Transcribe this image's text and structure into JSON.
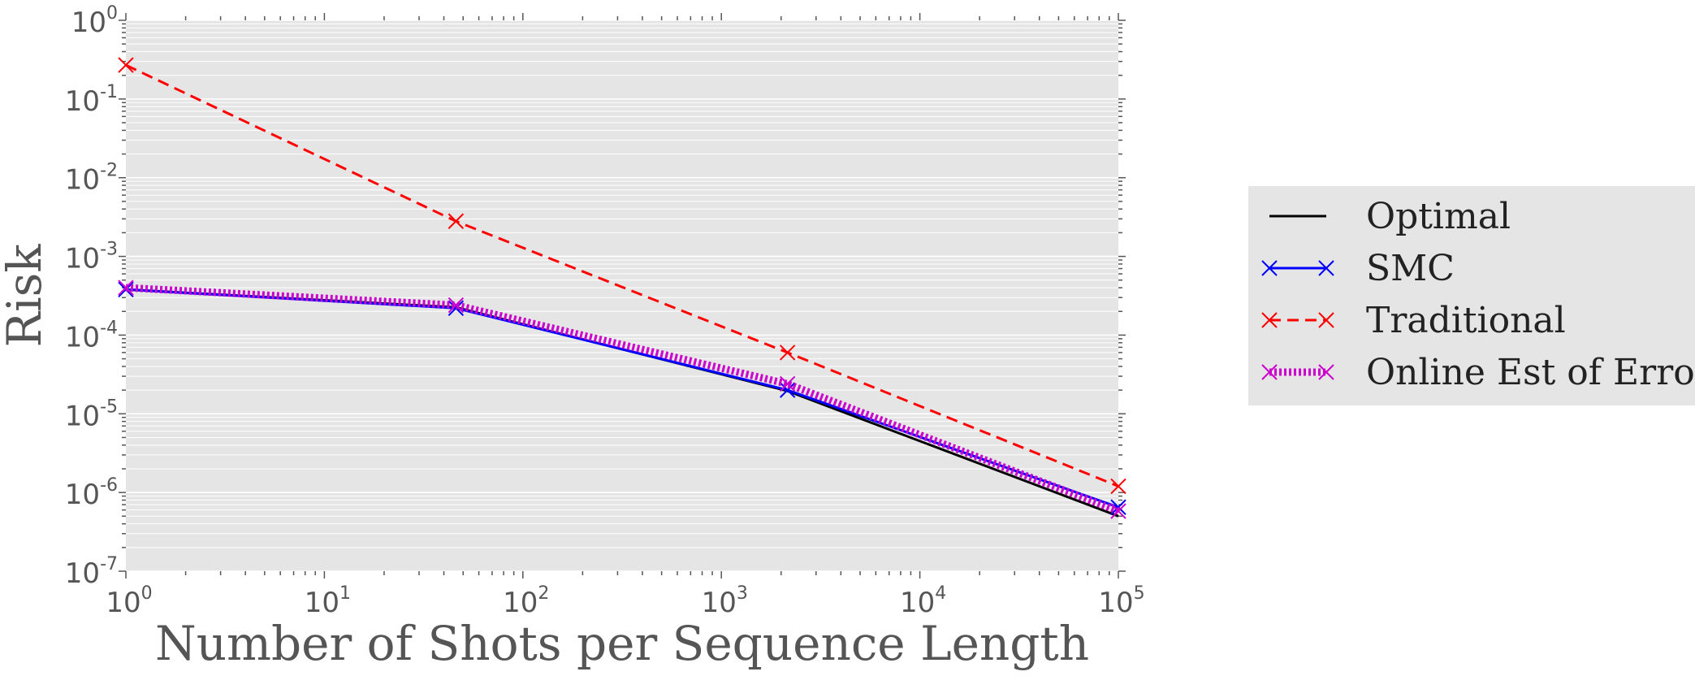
{
  "chart_data": {
    "type": "line",
    "title": "",
    "xlabel": "Number of Shots per Sequence Length",
    "ylabel": "Risk",
    "xscale": "log",
    "yscale": "log",
    "xlim": [
      1,
      100000
    ],
    "ylim": [
      1e-07,
      1
    ],
    "grid": true,
    "legend": "outside-right",
    "x_ticks": [
      {
        "base": "10",
        "exp": "0"
      },
      {
        "base": "10",
        "exp": "1"
      },
      {
        "base": "10",
        "exp": "2"
      },
      {
        "base": "10",
        "exp": "3"
      },
      {
        "base": "10",
        "exp": "4"
      },
      {
        "base": "10",
        "exp": "5"
      }
    ],
    "y_ticks": [
      {
        "base": "10",
        "exp": "0"
      },
      {
        "base": "10",
        "exp": "-1"
      },
      {
        "base": "10",
        "exp": "-2"
      },
      {
        "base": "10",
        "exp": "-3"
      },
      {
        "base": "10",
        "exp": "-4"
      },
      {
        "base": "10",
        "exp": "-5"
      },
      {
        "base": "10",
        "exp": "-6"
      },
      {
        "base": "10",
        "exp": "-7"
      }
    ],
    "series": [
      {
        "name": "Optimal",
        "color": "#000000",
        "style": "solid",
        "marker": "none",
        "x": [
          1,
          46,
          2154,
          100000
        ],
        "y": [
          0.00038,
          0.000225,
          1.95e-05,
          5e-07
        ]
      },
      {
        "name": "SMC",
        "color": "#0000ff",
        "style": "solid",
        "marker": "x",
        "x": [
          1,
          46,
          2154,
          100000
        ],
        "y": [
          0.00038,
          0.00022,
          2e-05,
          6.5e-07
        ]
      },
      {
        "name": "Traditional",
        "color": "#ff0000",
        "style": "dashed",
        "marker": "x",
        "x": [
          1,
          46,
          2154,
          100000
        ],
        "y": [
          0.27,
          0.0028,
          6e-05,
          1.2e-06
        ]
      },
      {
        "name": "Online Est of Error",
        "color": "#cc00cc",
        "style": "dotted",
        "marker": "x",
        "x": [
          1,
          46,
          2154,
          100000
        ],
        "y": [
          0.0004,
          0.00024,
          2.4e-05,
          5.8e-07
        ]
      }
    ]
  },
  "colors": {
    "plot_background": "#e5e5e5",
    "grid": "#ffffff",
    "legend_background": "#e5e5e5",
    "text": "#555555"
  }
}
